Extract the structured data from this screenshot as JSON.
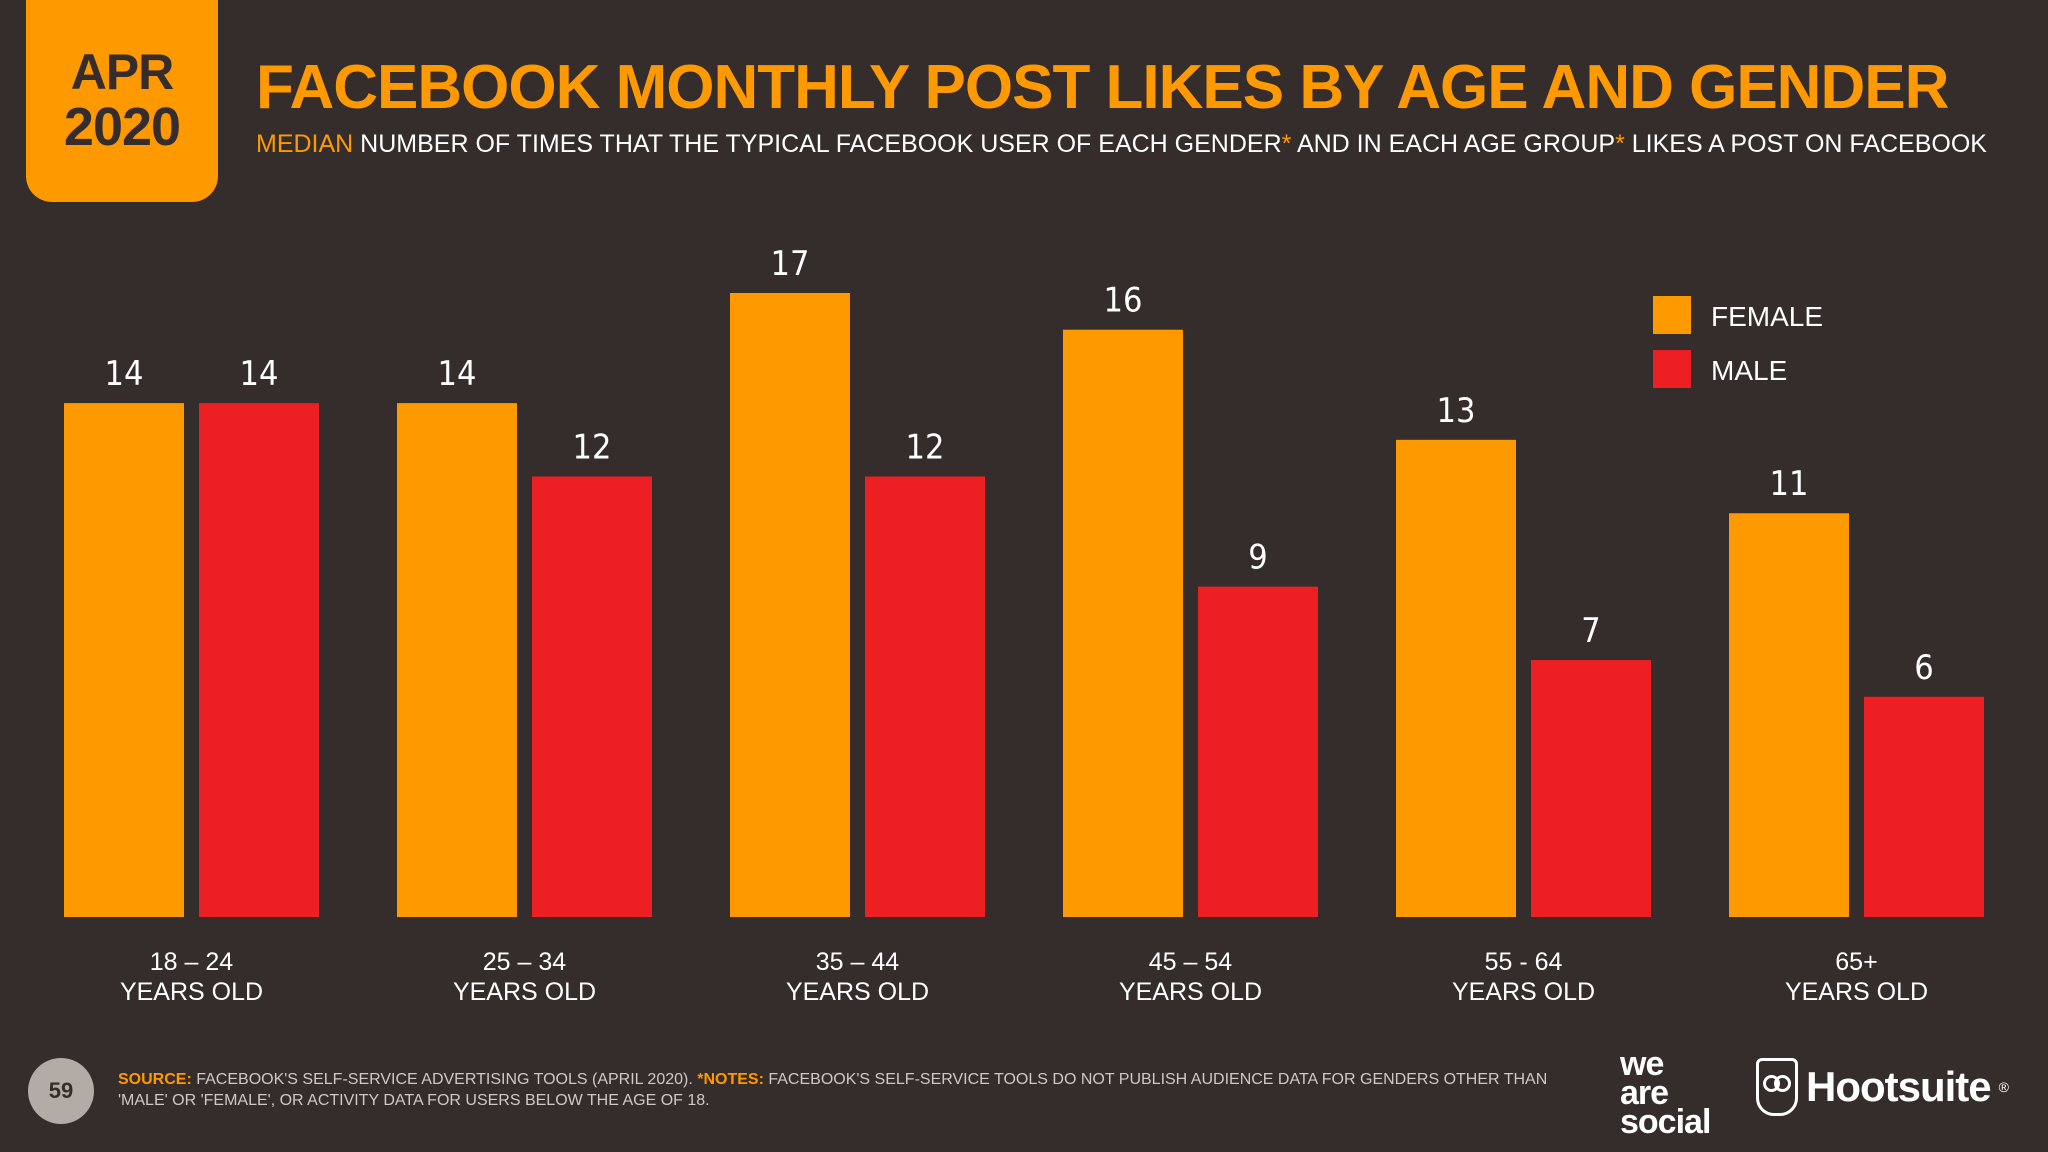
{
  "badge": {
    "month": "APR",
    "year": "2020"
  },
  "header": {
    "title": "FACEBOOK MONTHLY POST LIKES BY AGE AND GENDER",
    "subtitle_highlight": "MEDIAN",
    "subtitle_part1": " NUMBER OF TIMES THAT THE TYPICAL FACEBOOK USER OF EACH GENDER",
    "subtitle_asterisk": "*",
    "subtitle_part2": " AND IN EACH AGE GROUP",
    "subtitle_part3": " LIKES A POST ON FACEBOOK"
  },
  "chart_data": {
    "type": "bar",
    "categories": [
      [
        "18 – 24",
        "YEARS OLD"
      ],
      [
        "25 – 34",
        "YEARS OLD"
      ],
      [
        "35 – 44",
        "YEARS OLD"
      ],
      [
        "45 – 54",
        "YEARS OLD"
      ],
      [
        "55 - 64",
        "YEARS OLD"
      ],
      [
        "65+",
        "YEARS OLD"
      ]
    ],
    "series": [
      {
        "name": "FEMALE",
        "color": "#ff9900",
        "values": [
          14,
          14,
          17,
          16,
          13,
          11
        ]
      },
      {
        "name": "MALE",
        "color": "#ee1f23",
        "values": [
          14,
          12,
          12,
          9,
          7,
          6
        ]
      }
    ],
    "ylim": [
      0,
      17
    ],
    "grid": false,
    "legend": "top-right"
  },
  "footer": {
    "page_number": "59",
    "source_label": "SOURCE:",
    "source_text": " FACEBOOK'S SELF-SERVICE ADVERTISING TOOLS (APRIL 2020). ",
    "notes_label": "*NOTES:",
    "notes_text": " FACEBOOK'S SELF-SERVICE TOOLS DO NOT PUBLISH AUDIENCE DATA FOR GENDERS OTHER THAN 'MALE' OR 'FEMALE', OR ACTIVITY DATA FOR USERS BELOW THE AGE OF 18."
  },
  "logos": {
    "was_line1": "we",
    "was_line2": "are",
    "was_line3": "social",
    "hootsuite": "Hootsuite",
    "hootsuite_mark": "®"
  }
}
